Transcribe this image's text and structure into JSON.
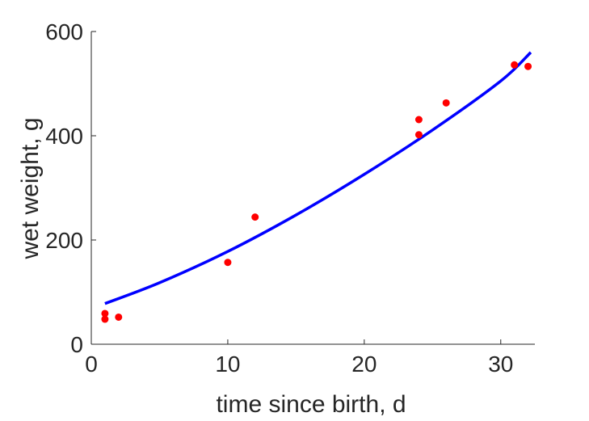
{
  "chart_data": {
    "type": "scatter",
    "title": "",
    "xlabel": "time since birth, d",
    "ylabel": "wet weight, g",
    "xlim": [
      0,
      32.5
    ],
    "ylim": [
      0,
      600
    ],
    "xticks": [
      0,
      10,
      20,
      30
    ],
    "yticks": [
      0,
      200,
      400,
      600
    ],
    "grid": false,
    "legend": "none",
    "series": [
      {
        "kind": "points",
        "color": "#ff0000",
        "points": [
          {
            "x": 1,
            "y": 48
          },
          {
            "x": 1,
            "y": 59
          },
          {
            "x": 2,
            "y": 52
          },
          {
            "x": 10,
            "y": 157
          },
          {
            "x": 12,
            "y": 244
          },
          {
            "x": 24,
            "y": 402
          },
          {
            "x": 24,
            "y": 431
          },
          {
            "x": 26,
            "y": 463
          },
          {
            "x": 31,
            "y": 536
          },
          {
            "x": 32,
            "y": 533
          }
        ]
      },
      {
        "kind": "line",
        "color": "#0000ff",
        "points": [
          {
            "x": 1,
            "y": 78
          },
          {
            "x": 5,
            "y": 118
          },
          {
            "x": 10,
            "y": 178
          },
          {
            "x": 15,
            "y": 248
          },
          {
            "x": 20,
            "y": 326
          },
          {
            "x": 25,
            "y": 411
          },
          {
            "x": 30,
            "y": 505
          },
          {
            "x": 32.2,
            "y": 560
          }
        ]
      }
    ]
  }
}
